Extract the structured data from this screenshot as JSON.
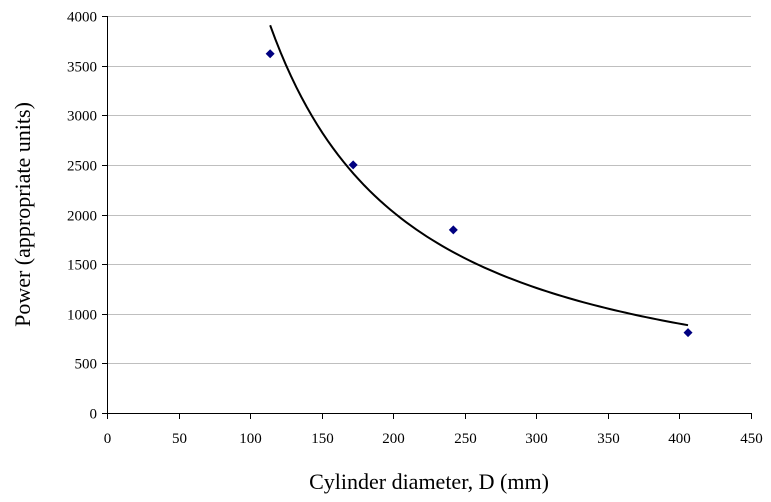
{
  "chart_data": {
    "type": "scatter",
    "xlabel": "Cylinder diameter, D (mm)",
    "ylabel": "Power (appropriate units)",
    "xlim": [
      0,
      450
    ],
    "ylim": [
      0,
      4000
    ],
    "xticks": [
      0,
      50,
      100,
      150,
      200,
      250,
      300,
      350,
      400,
      450
    ],
    "yticks": [
      0,
      500,
      1000,
      1500,
      2000,
      2500,
      3000,
      3500,
      4000
    ],
    "grid": "horizontal",
    "legend": "none",
    "marker_color": "#000080",
    "trendline_color": "#000000",
    "points": [
      {
        "x": 114,
        "y": 3620
      },
      {
        "x": 172,
        "y": 2500
      },
      {
        "x": 242,
        "y": 1845
      },
      {
        "x": 406,
        "y": 810
      }
    ],
    "trendline": {
      "type": "power",
      "x_range": [
        114,
        406
      ]
    }
  }
}
